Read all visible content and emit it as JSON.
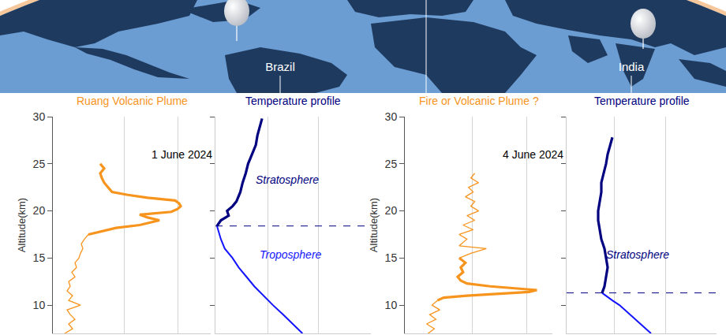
{
  "map": {
    "labels": [
      "Brazil",
      "India"
    ]
  },
  "chart_data": [
    {
      "type": "line",
      "title": "Ruang Volcanic Plume",
      "color": "#f7941d",
      "ylabel": "Altitude(km)",
      "xlim": [
        0,
        200
      ],
      "xticks": [
        90,
        158
      ],
      "ylim": [
        7,
        30
      ],
      "yticks": [
        10,
        15,
        20,
        25,
        30
      ],
      "grid": true,
      "tick_labels": "y",
      "series": [
        {
          "color": "#f7941d",
          "line_style": "thin",
          "y": [
            7,
            7.5,
            8,
            8.5,
            9,
            9.5,
            10,
            10.5,
            11,
            11.5,
            12,
            12.5,
            13,
            13.5,
            14,
            14.5,
            15,
            15.5,
            16,
            16.5,
            17,
            17.5
          ],
          "x": [
            15,
            25,
            20,
            28,
            22,
            18,
            35,
            20,
            25,
            18,
            22,
            20,
            28,
            24,
            30,
            28,
            33,
            35,
            38,
            36,
            40,
            45
          ]
        },
        {
          "color": "#f7941d",
          "line_style": "thick",
          "y": [
            17.5,
            17.8,
            18.2,
            18.5,
            18.8,
            19.0,
            19.3,
            19.6,
            19.9,
            20.2,
            20.5,
            20.8,
            21.1,
            21.4,
            21.7,
            22.0,
            22.5,
            23,
            23.5,
            24,
            24.5,
            25
          ],
          "x": [
            45,
            60,
            80,
            110,
            125,
            135,
            120,
            110,
            150,
            158,
            162,
            160,
            155,
            120,
            95,
            75,
            70,
            65,
            62,
            60,
            65,
            60
          ]
        }
      ]
    },
    {
      "type": "line",
      "title": "Temperature profile",
      "color": "#000080",
      "subtitle": "1 June 2024",
      "xlim": [
        0,
        200
      ],
      "xticks": [
        67,
        132
      ],
      "ylim": [
        7,
        30
      ],
      "yticks": [
        10,
        15,
        20,
        25,
        30
      ],
      "grid": true,
      "tick_labels": false,
      "tropopause": 18.4,
      "annotations": [
        {
          "text": "Stratosphere",
          "x": 92,
          "y": 23.3,
          "color": "#000080"
        },
        {
          "text": "Troposphere",
          "x": 97,
          "y": 15.4,
          "color": "#1414ff"
        }
      ],
      "series": [
        {
          "color": "#1414ff",
          "line_style": "medium",
          "y": [
            7,
            8,
            9,
            10,
            11,
            12,
            13,
            14,
            15,
            16,
            17,
            18,
            18.4
          ],
          "x": [
            112,
            100,
            87,
            74,
            62,
            50,
            40,
            30,
            22,
            12,
            7,
            3,
            2
          ]
        },
        {
          "color": "#000080",
          "line_style": "thick",
          "y": [
            18.4,
            19,
            19.5,
            20,
            20.5,
            21,
            22,
            23,
            24,
            25,
            26,
            27,
            28,
            29,
            29.8
          ],
          "x": [
            2,
            7,
            17,
            15,
            22,
            27,
            32,
            35,
            39,
            42,
            47,
            52,
            54,
            57,
            60
          ]
        }
      ]
    },
    {
      "type": "line",
      "title": "Fire or Volcanic Plume ?",
      "color": "#f7941d",
      "ylabel": "Altitude(km)",
      "xlim": [
        0,
        190
      ],
      "xticks": [
        87,
        157
      ],
      "ylim": [
        7,
        30
      ],
      "yticks": [
        10,
        15,
        20,
        25,
        30
      ],
      "grid": true,
      "tick_labels": "y",
      "series": [
        {
          "color": "#f7941d",
          "line_style": "thin",
          "y": [
            7,
            7.5,
            8,
            8.5,
            9,
            9.5,
            10,
            10.5
          ],
          "x": [
            30,
            38,
            28,
            40,
            32,
            45,
            35,
            42
          ]
        },
        {
          "color": "#f7941d",
          "line_style": "thick",
          "y": [
            10.5,
            10.8,
            11.0,
            11.2,
            11.4,
            11.6,
            11.8,
            12.0,
            12.3,
            12.6,
            13,
            13.5,
            14,
            14.5,
            15
          ],
          "x": [
            42,
            50,
            80,
            120,
            160,
            170,
            140,
            110,
            80,
            72,
            68,
            75,
            72,
            78,
            70
          ]
        },
        {
          "color": "#f7941d",
          "line_style": "thin",
          "y": [
            15,
            15.5,
            16,
            16.3,
            17,
            17.5,
            18,
            18.5,
            19,
            19.5,
            20,
            20.5,
            21,
            21.5,
            22,
            22.5,
            23,
            23.5,
            24
          ],
          "x": [
            70,
            85,
            105,
            70,
            80,
            70,
            88,
            75,
            90,
            80,
            95,
            85,
            90,
            78,
            88,
            82,
            95,
            85,
            90
          ]
        }
      ]
    },
    {
      "type": "line",
      "title": "Temperature profile",
      "color": "#000080",
      "subtitle": "4 June 2024",
      "xlim": [
        0,
        190
      ],
      "xticks": [
        60,
        125
      ],
      "ylim": [
        7,
        30
      ],
      "yticks": [
        10,
        15,
        20,
        25,
        30
      ],
      "grid": true,
      "tick_labels": false,
      "tropopause": 11.3,
      "annotations": [
        {
          "text": "Stratosphere",
          "x": 90,
          "y": 15.4,
          "color": "#000080"
        }
      ],
      "series": [
        {
          "color": "#1414ff",
          "line_style": "medium",
          "y": [
            7,
            8,
            9,
            10,
            10.5,
            11,
            11.3
          ],
          "x": [
            107,
            94,
            80,
            67,
            58,
            50,
            45
          ]
        },
        {
          "color": "#000080",
          "line_style": "thick",
          "y": [
            11.3,
            12,
            13,
            14,
            15,
            16,
            17,
            18,
            19,
            20,
            21,
            22,
            23,
            24,
            25,
            26,
            27,
            27.8
          ],
          "x": [
            45,
            48,
            50,
            52,
            50,
            48,
            44,
            42,
            40,
            40,
            42,
            44,
            44,
            47,
            50,
            52,
            55,
            58
          ]
        }
      ]
    }
  ]
}
